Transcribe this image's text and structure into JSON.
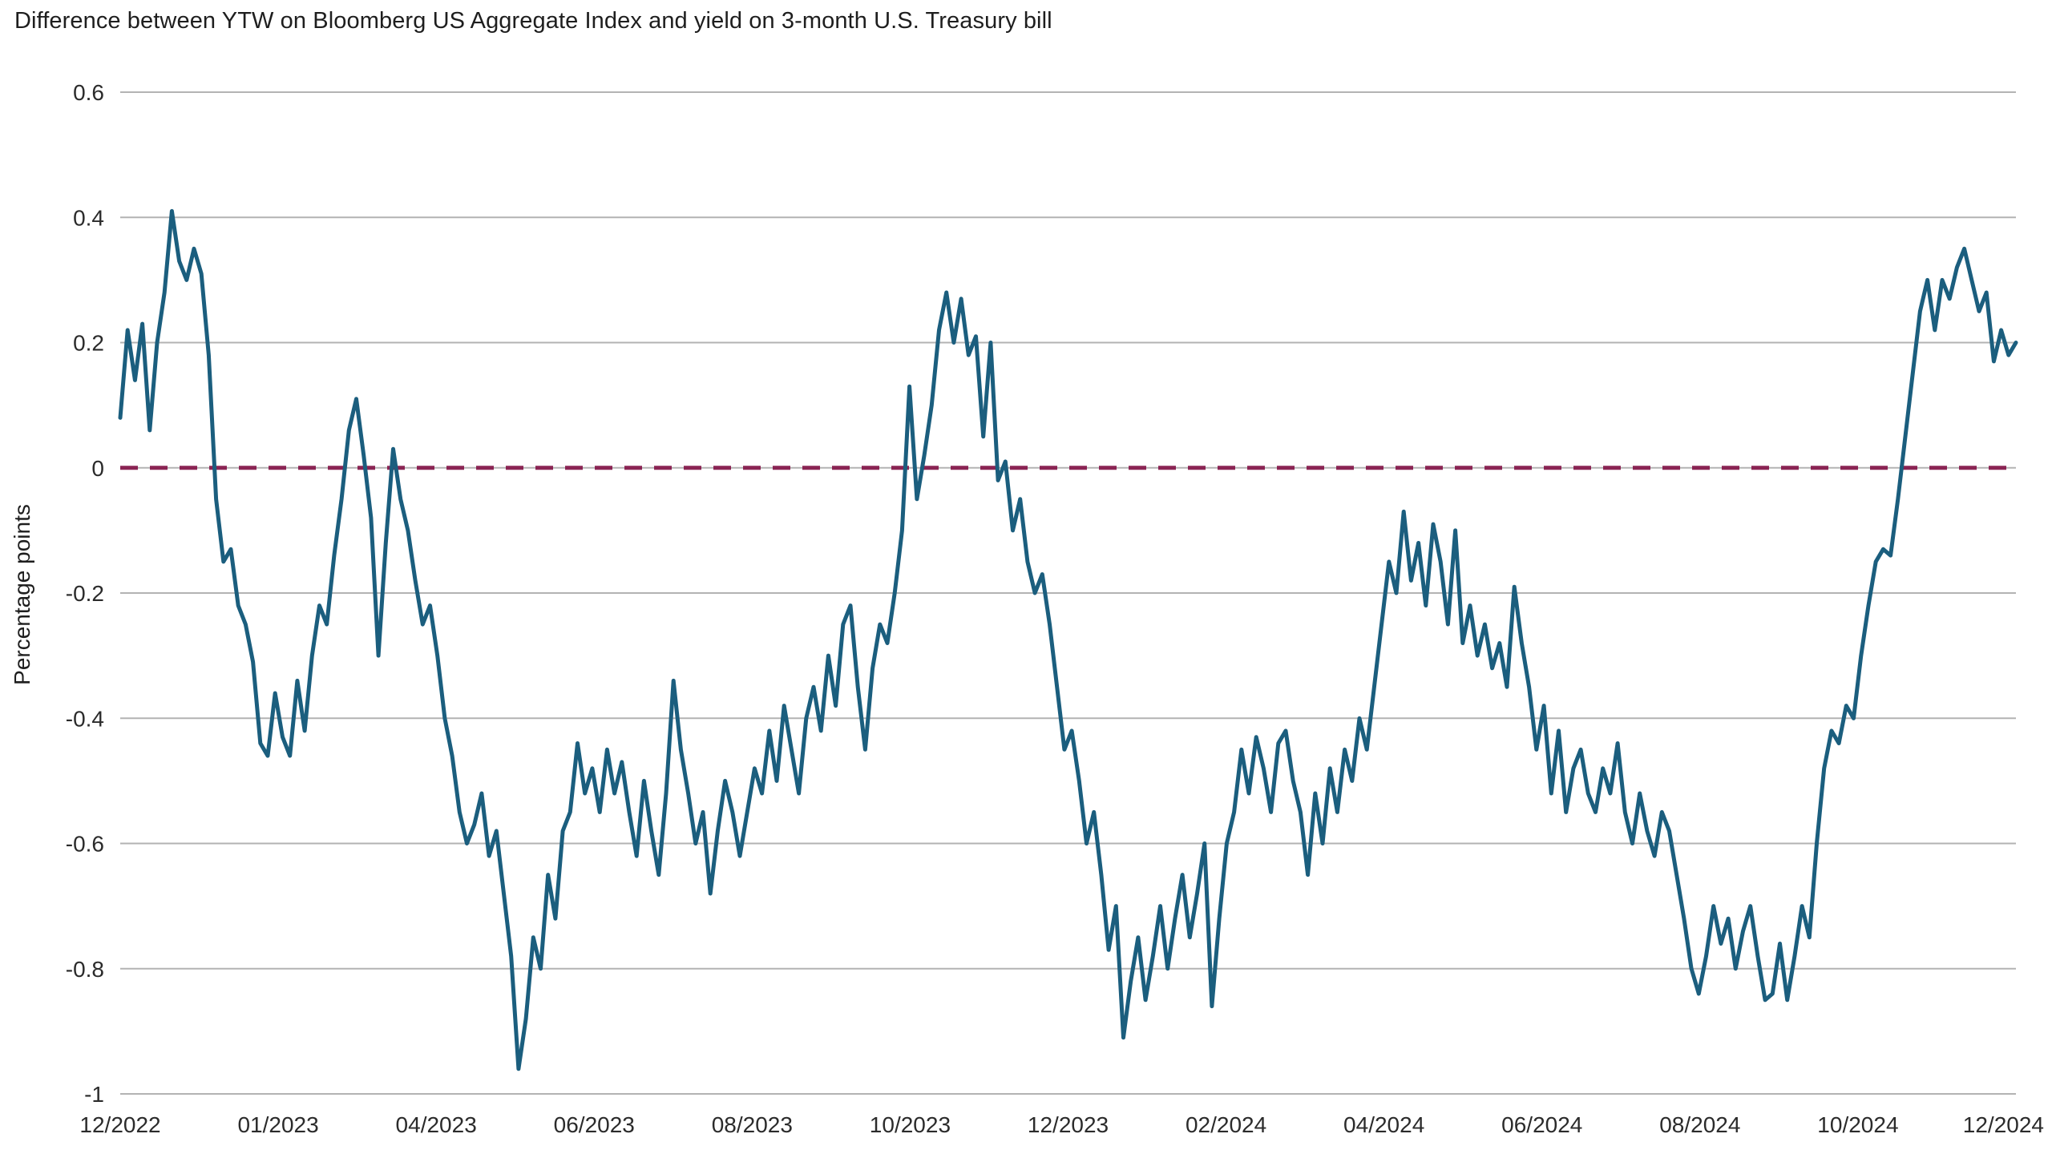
{
  "chart_data": {
    "type": "line",
    "title": "Difference between YTW on Bloomberg US Aggregate Index and yield on 3-month U.S. Treasury bill",
    "ylabel": "Percentage points",
    "xlabel": "",
    "ylim": [
      -1,
      0.6
    ],
    "y_ticks": [
      0.6,
      0.4,
      0.2,
      0,
      -0.2,
      -0.4,
      -0.6,
      -0.8,
      -1
    ],
    "x_tick_labels": [
      "12/2022",
      "01/2023",
      "04/2023",
      "06/2023",
      "08/2023",
      "10/2023",
      "12/2023",
      "02/2024",
      "04/2024",
      "06/2024",
      "08/2024",
      "10/2024",
      "12/2024"
    ],
    "grid": true,
    "legend": "none",
    "line_color": "#1b5e7e",
    "gridline_color": "#b3b3b3",
    "tick_label_color": "#2b2b2b",
    "zero_line": {
      "value": 0,
      "style": "dashed",
      "color": "#8a2453"
    },
    "series": [
      {
        "values": [
          0.08,
          0.22,
          0.14,
          0.23,
          0.06,
          0.2,
          0.28,
          0.41,
          0.33,
          0.3,
          0.35,
          0.31,
          0.18,
          -0.05,
          -0.15,
          -0.13,
          -0.22,
          -0.25,
          -0.31,
          -0.44,
          -0.46,
          -0.36,
          -0.43,
          -0.46,
          -0.34,
          -0.42,
          -0.3,
          -0.22,
          -0.25,
          -0.14,
          -0.05,
          0.06,
          0.11,
          0.02,
          -0.08,
          -0.3,
          -0.12,
          0.03,
          -0.05,
          -0.1,
          -0.18,
          -0.25,
          -0.22,
          -0.3,
          -0.4,
          -0.46,
          -0.55,
          -0.6,
          -0.57,
          -0.52,
          -0.62,
          -0.58,
          -0.68,
          -0.78,
          -0.96,
          -0.88,
          -0.75,
          -0.8,
          -0.65,
          -0.72,
          -0.58,
          -0.55,
          -0.44,
          -0.52,
          -0.48,
          -0.55,
          -0.45,
          -0.52,
          -0.47,
          -0.55,
          -0.62,
          -0.5,
          -0.58,
          -0.65,
          -0.52,
          -0.34,
          -0.45,
          -0.52,
          -0.6,
          -0.55,
          -0.68,
          -0.58,
          -0.5,
          -0.55,
          -0.62,
          -0.55,
          -0.48,
          -0.52,
          -0.42,
          -0.5,
          -0.38,
          -0.45,
          -0.52,
          -0.4,
          -0.35,
          -0.42,
          -0.3,
          -0.38,
          -0.25,
          -0.22,
          -0.35,
          -0.45,
          -0.32,
          -0.25,
          -0.28,
          -0.2,
          -0.1,
          0.13,
          -0.05,
          0.02,
          0.1,
          0.22,
          0.28,
          0.2,
          0.27,
          0.18,
          0.21,
          0.05,
          0.2,
          -0.02,
          0.01,
          -0.1,
          -0.05,
          -0.15,
          -0.2,
          -0.17,
          -0.25,
          -0.35,
          -0.45,
          -0.42,
          -0.5,
          -0.6,
          -0.55,
          -0.65,
          -0.77,
          -0.7,
          -0.91,
          -0.82,
          -0.75,
          -0.85,
          -0.78,
          -0.7,
          -0.8,
          -0.72,
          -0.65,
          -0.75,
          -0.68,
          -0.6,
          -0.86,
          -0.72,
          -0.6,
          -0.55,
          -0.45,
          -0.52,
          -0.43,
          -0.48,
          -0.55,
          -0.44,
          -0.42,
          -0.5,
          -0.55,
          -0.65,
          -0.52,
          -0.6,
          -0.48,
          -0.55,
          -0.45,
          -0.5,
          -0.4,
          -0.45,
          -0.35,
          -0.25,
          -0.15,
          -0.2,
          -0.07,
          -0.18,
          -0.12,
          -0.22,
          -0.09,
          -0.15,
          -0.25,
          -0.1,
          -0.28,
          -0.22,
          -0.3,
          -0.25,
          -0.32,
          -0.28,
          -0.35,
          -0.19,
          -0.28,
          -0.35,
          -0.45,
          -0.38,
          -0.52,
          -0.42,
          -0.55,
          -0.48,
          -0.45,
          -0.52,
          -0.55,
          -0.48,
          -0.52,
          -0.44,
          -0.55,
          -0.6,
          -0.52,
          -0.58,
          -0.62,
          -0.55,
          -0.58,
          -0.65,
          -0.72,
          -0.8,
          -0.84,
          -0.78,
          -0.7,
          -0.76,
          -0.72,
          -0.8,
          -0.74,
          -0.7,
          -0.78,
          -0.85,
          -0.84,
          -0.76,
          -0.85,
          -0.78,
          -0.7,
          -0.75,
          -0.6,
          -0.48,
          -0.42,
          -0.44,
          -0.38,
          -0.4,
          -0.3,
          -0.22,
          -0.15,
          -0.13,
          -0.14,
          -0.05,
          0.05,
          0.15,
          0.25,
          0.3,
          0.22,
          0.3,
          0.27,
          0.32,
          0.35,
          0.3,
          0.25,
          0.28,
          0.17,
          0.22,
          0.18,
          0.2
        ]
      }
    ]
  }
}
